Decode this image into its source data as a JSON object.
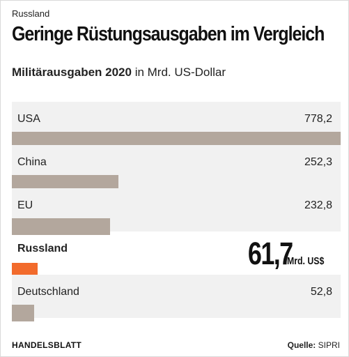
{
  "kicker": "Russland",
  "title": "Geringe Rüstungsausgaben im Vergleich",
  "subtitle": {
    "bold": "Militärausgaben 2020",
    "rest": " in Mrd. US-Dollar"
  },
  "colors": {
    "bar_default": "#b3a79d",
    "bar_highlight": "#f26b2c",
    "row_shade": "#f1f1f1"
  },
  "chart_data": {
    "type": "bar",
    "orientation": "horizontal",
    "categories": [
      "USA",
      "China",
      "EU",
      "Russland",
      "Deutschland"
    ],
    "values": [
      778.2,
      252.3,
      232.8,
      61.7,
      52.8
    ],
    "value_labels": [
      "778,2",
      "252,3",
      "232,8",
      "61,7",
      "52,8"
    ],
    "highlight": "Russland",
    "highlight_unit": "Mrd. US$",
    "title": "Geringe Rüstungsausgaben im Vergleich",
    "subtitle": "Militärausgaben 2020 in Mrd. US-Dollar",
    "xlim": [
      0,
      778.2
    ],
    "grid": false
  },
  "footer": {
    "brand": "HANDELSBLATT",
    "source_label": "Quelle:",
    "source": "SIPRI"
  }
}
